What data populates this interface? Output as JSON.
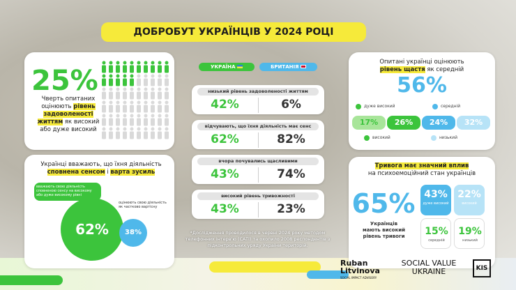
{
  "header": {
    "title": "ДОБРОБУТ УКРАЇНЦІВ У 2024 РОЦІ"
  },
  "satisfaction": {
    "value": "25%",
    "text_before": "Чверть опитаних оцінюють",
    "highlight": "рівень задоволеності життям",
    "text_after": "як високий або дуже високий"
  },
  "meaning": {
    "title_before": "Українці вважають, що їхня діяльність",
    "highlight1": "сповнена сенсом",
    "title_and": "і",
    "highlight2": "варта зусиль",
    "high": {
      "value": "62%",
      "label": "вважають свою діяльність сповненою сенсу на високому або дуже високому рівні"
    },
    "partial": {
      "value": "38%",
      "label": "оцінюють свою діяльність як частково вартісну"
    }
  },
  "comparison": {
    "columns": [
      "УКРАЇНА",
      "БРИТАНІЯ"
    ],
    "rows": [
      {
        "label": "низький рівень задоволеності життям",
        "ukraine": "42%",
        "britain": "6%"
      },
      {
        "label": "відчувають, що їхня діяльність має сенс",
        "ukraine": "62%",
        "britain": "82%"
      },
      {
        "label": "вчора почувались щасливими",
        "ukraine": "43%",
        "britain": "74%"
      },
      {
        "label": "високий рівень тривожності",
        "ukraine": "43%",
        "britain": "23%"
      }
    ],
    "footnote": "*Дослідження проводилося в червні 2024 року методом телефонних інтерв'ю (CATI) та охопило 2008 респондентів з підконтрольних уряду України територій."
  },
  "happiness": {
    "title_before": "Опитані українці оцінюють",
    "highlight": "рівень щастя",
    "title_after": "як середній",
    "value": "56%",
    "segments": [
      {
        "value": "17%",
        "label": "дуже високий"
      },
      {
        "value": "26%",
        "label": "високий"
      },
      {
        "value": "24%",
        "label": "середній"
      },
      {
        "value": "32%",
        "label": "низький"
      }
    ]
  },
  "anxiety": {
    "title_highlight": "Тривога має значний вплив",
    "title_rest": "на психоемоційний стан українців",
    "value": "65%",
    "text": "Українців мають високий рівень тривоги",
    "levels": [
      {
        "value": "43%",
        "label": "дуже високий"
      },
      {
        "value": "22%",
        "label": "високий"
      },
      {
        "value": "15%",
        "label": "середній"
      },
      {
        "value": "19%",
        "label": "низький"
      }
    ]
  },
  "footer": {
    "logo1": "Ruban Litvinova",
    "logo1_sub": "SOCIAL IMPACT ADVISORY",
    "logo2": "SOCIAL VALUE UKRAINE",
    "logo3": "KIS"
  }
}
